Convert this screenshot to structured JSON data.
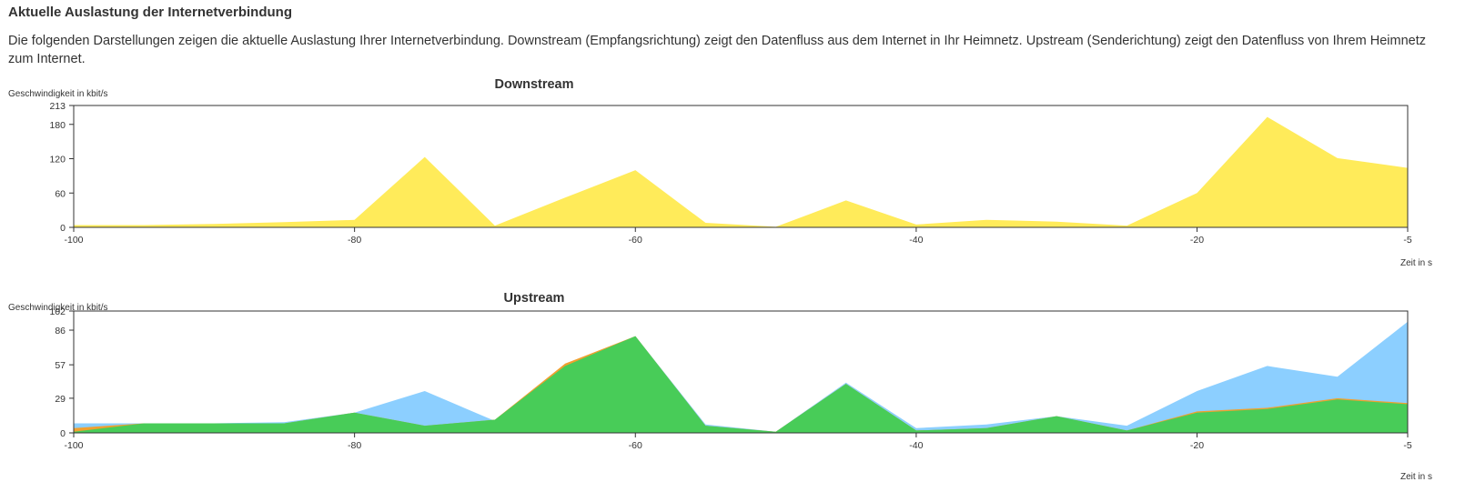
{
  "section": {
    "title": "Aktuelle Auslastung der Internetverbindung",
    "description": "Die folgenden Darstellungen zeigen die aktuelle Auslastung Ihrer Internetverbindung. Downstream (Empfangsrichtung) zeigt den Datenfluss aus dem Internet in Ihr Heimnetz. Upstream (Senderichtung) zeigt den Datenfluss von Ihrem Heimnetz zum Internet."
  },
  "colors": {
    "downstream_fill": "#ffeb5a",
    "upstream_total": "#8ccfff",
    "upstream_prio": "#f0a030",
    "upstream_normal": "#48cc58",
    "axis": "#333333"
  },
  "chart_data": [
    {
      "type": "area",
      "title": "Downstream",
      "ylabel": "Geschwindigkeit in kbit/s",
      "xlabel": "Zeit in s",
      "xlim": [
        -100,
        -5
      ],
      "ylim": [
        0,
        213
      ],
      "xticks": [
        -100,
        -80,
        -60,
        -40,
        -20,
        -5
      ],
      "yticks": [
        0,
        60,
        120,
        180,
        213
      ],
      "grid": false,
      "x": [
        -100,
        -95,
        -90,
        -85,
        -80,
        -75,
        -70,
        -65,
        -60,
        -55,
        -50,
        -45,
        -40,
        -35,
        -30,
        -25,
        -20,
        -15,
        -10,
        -5
      ],
      "series": [
        {
          "values": [
            4,
            4,
            6,
            9,
            13,
            123,
            3,
            52,
            100,
            8,
            1,
            47,
            5,
            13,
            10,
            3,
            60,
            193,
            121,
            104
          ]
        }
      ]
    },
    {
      "type": "area",
      "title": "Upstream",
      "ylabel": "Geschwindigkeit in kbit/s",
      "xlabel": "Zeit in s",
      "xlim": [
        -100,
        -5
      ],
      "ylim": [
        0,
        102
      ],
      "xticks": [
        -100,
        -80,
        -60,
        -40,
        -20,
        -5
      ],
      "yticks": [
        0,
        29,
        57,
        86,
        102
      ],
      "grid": false,
      "x": [
        -100,
        -95,
        -90,
        -85,
        -80,
        -75,
        -70,
        -65,
        -60,
        -55,
        -50,
        -45,
        -40,
        -35,
        -30,
        -25,
        -20,
        -15,
        -10,
        -5
      ],
      "series": [
        {
          "values": [
            8,
            8,
            8,
            9,
            17,
            35,
            10,
            57,
            81,
            7,
            1,
            42,
            4,
            7,
            14,
            6,
            35,
            56,
            47,
            93
          ]
        },
        {
          "values": [
            4,
            8,
            8,
            8,
            17,
            6,
            11,
            58,
            81,
            6,
            1,
            41,
            2,
            4,
            14,
            2,
            18,
            21,
            29,
            25
          ]
        },
        {
          "values": [
            1,
            8,
            8,
            8,
            17,
            6,
            11,
            56,
            81,
            6,
            1,
            41,
            2,
            4,
            14,
            2,
            17,
            20,
            28,
            24
          ]
        }
      ]
    }
  ]
}
